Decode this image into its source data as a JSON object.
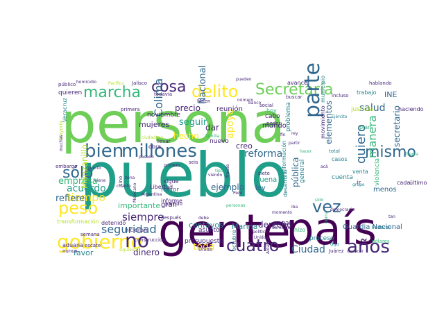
{
  "palette": {
    "dark_purple": "#440154",
    "purple": "#482878",
    "blue": "#3e4a89",
    "teal_blue": "#31688e",
    "teal": "#26828e",
    "green_teal": "#1f9e89",
    "green": "#35b779",
    "light_green": "#6ece58",
    "yellow_green": "#b5de2b",
    "yellow": "#fde725"
  },
  "words": [
    {
      "text": "persona",
      "color": "light_green"
    },
    {
      "text": "pueblo",
      "color": "green_teal"
    },
    {
      "text": "gente",
      "color": "dark_purple"
    },
    {
      "text": "país",
      "color": "dark_purple"
    },
    {
      "text": "millones",
      "color": "teal_blue"
    },
    {
      "text": "gobierno",
      "color": "yellow"
    },
    {
      "text": "Secretaría",
      "color": "light_green"
    },
    {
      "text": "marcha",
      "color": "green"
    },
    {
      "text": "delito",
      "color": "yellow"
    },
    {
      "text": "cosa",
      "color": "purple"
    },
    {
      "text": "mismo",
      "color": "teal_blue"
    },
    {
      "text": "bien",
      "color": "teal_blue"
    },
    {
      "text": "parte",
      "color": "teal_blue"
    },
    {
      "text": "peso",
      "color": "yellow"
    },
    {
      "text": "no",
      "color": "purple"
    },
    {
      "text": "años",
      "color": "purple"
    },
    {
      "text": "cuatro",
      "color": "purple"
    },
    {
      "text": "vez",
      "color": "teal_blue"
    },
    {
      "text": "sólo",
      "color": "teal_blue"
    },
    {
      "text": "salud",
      "color": "teal_blue"
    },
    {
      "text": "Colima",
      "color": "teal_blue"
    },
    {
      "text": "apoyo",
      "color": "yellow"
    },
    {
      "text": "quiero",
      "color": "teal_blue"
    },
    {
      "text": "manera",
      "color": "green"
    },
    {
      "text": "tiempo",
      "color": "yellow"
    },
    {
      "text": "acuerdo",
      "color": "green_teal"
    },
    {
      "text": "seguridad",
      "color": "teal_blue"
    },
    {
      "text": "siempre",
      "color": "purple"
    },
    {
      "text": "Ciudad",
      "color": "teal_blue"
    },
    {
      "text": "reforma",
      "color": "teal_blue"
    },
    {
      "text": "refiere",
      "color": "teal_blue"
    },
    {
      "text": "empresa",
      "color": "green"
    },
    {
      "text": "ejemplo",
      "color": "teal_blue"
    },
    {
      "text": "derecho",
      "color": "purple"
    },
    {
      "text": "Marina",
      "color": "teal"
    },
    {
      "text": "centavos",
      "color": "teal"
    },
    {
      "text": "importante",
      "color": "green"
    },
    {
      "text": "mujeres",
      "color": "purple"
    },
    {
      "text": "precio",
      "color": "purple"
    },
    {
      "text": "seguir",
      "color": "green_teal"
    },
    {
      "text": "hecho",
      "color": "yellow"
    },
    {
      "text": "dar",
      "color": "purple"
    },
    {
      "text": "creo",
      "color": "purple"
    },
    {
      "text": "Manzanillo",
      "color": "yellow_green"
    },
    {
      "text": "Nacional",
      "color": "teal_blue"
    },
    {
      "text": "pública",
      "color": "teal_blue"
    },
    {
      "text": "secretario",
      "color": "teal_blue"
    },
    {
      "text": "elementos",
      "color": "teal_blue"
    },
    {
      "text": "Guardia Nacional",
      "color": "teal_blue"
    },
    {
      "text": "toda",
      "color": "yellow"
    },
    {
      "text": "dinero",
      "color": "purple"
    },
    {
      "text": "favor",
      "color": "teal"
    },
    {
      "text": "reunión",
      "color": "purple"
    },
    {
      "text": "buena",
      "color": "green_teal"
    },
    {
      "text": "ley",
      "color": "teal_blue"
    },
    {
      "text": "menos",
      "color": "teal_blue"
    },
    {
      "text": "mundo",
      "color": "purple"
    },
    {
      "text": "INE",
      "color": "teal_blue"
    },
    {
      "text": "justicia",
      "color": "yellow_green"
    },
    {
      "text": "nuevo",
      "color": "purple"
    },
    {
      "text": "gran",
      "color": "purple"
    },
    {
      "text": "mejor",
      "color": "teal_blue"
    },
    {
      "text": "cuenta",
      "color": "teal"
    },
    {
      "text": "venta",
      "color": "teal"
    },
    {
      "text": "noviembre",
      "color": "purple"
    },
    {
      "text": "asunto",
      "color": "purple"
    },
    {
      "text": "pagar",
      "color": "purple"
    },
    {
      "text": "presupuesto",
      "color": "purple"
    },
    {
      "text": "proceso",
      "color": "teal"
    },
    {
      "text": "dijo",
      "color": "teal"
    },
    {
      "text": "total",
      "color": "teal"
    },
    {
      "text": "casos",
      "color": "teal"
    },
    {
      "text": "cabo",
      "color": "purple"
    },
    {
      "text": "hoy",
      "color": "green"
    },
    {
      "text": "plan",
      "color": "green"
    },
    {
      "text": "cada",
      "color": "purple"
    },
    {
      "text": "último",
      "color": "purple"
    },
    {
      "text": "hablando",
      "color": "purple"
    },
    {
      "text": "trabajo",
      "color": "teal"
    },
    {
      "text": "haciendo",
      "color": "purple"
    },
    {
      "text": "problema",
      "color": "teal"
    },
    {
      "text": "movimiento",
      "color": "purple"
    },
    {
      "text": "Jalisco",
      "color": "purple"
    },
    {
      "text": "público",
      "color": "purple"
    },
    {
      "text": "quieren",
      "color": "purple"
    },
    {
      "text": "todavía",
      "color": "purple"
    },
    {
      "text": "avance",
      "color": "purple"
    },
    {
      "text": "primera",
      "color": "purple"
    },
    {
      "text": "Veracruz",
      "color": "teal"
    },
    {
      "text": "Mayoría",
      "color": "yellow_green"
    },
    {
      "text": "familia",
      "color": "green"
    },
    {
      "text": "llevar",
      "color": "purple"
    },
    {
      "text": "embargo",
      "color": "purple"
    },
    {
      "text": "puerto",
      "color": "purple"
    },
    {
      "text": "viene",
      "color": "purple"
    },
    {
      "text": "zona",
      "color": "purple"
    },
    {
      "text": "cuanto",
      "color": "purple"
    },
    {
      "text": "sino",
      "color": "purple"
    },
    {
      "text": "obra",
      "color": "purple"
    },
    {
      "text": "Libertad",
      "color": "purple"
    },
    {
      "text": "informe",
      "color": "purple"
    },
    {
      "text": "sigue",
      "color": "purple"
    },
    {
      "text": "siete",
      "color": "purple"
    },
    {
      "text": "hicieron",
      "color": "purple"
    },
    {
      "text": "detenido",
      "color": "purple"
    },
    {
      "text": "transformación",
      "color": "yellow_green"
    },
    {
      "text": "semana",
      "color": "purple"
    },
    {
      "text": "aduana",
      "color": "purple"
    },
    {
      "text": "nunca",
      "color": "purple"
    },
    {
      "text": "escate",
      "color": "purple"
    },
    {
      "text": "construcción",
      "color": "purple"
    },
    {
      "text": "partido",
      "color": "purple"
    },
    {
      "text": "después",
      "color": "purple"
    },
    {
      "text": "Unido",
      "color": "purple"
    },
    {
      "text": "siguiente",
      "color": "yellow_green"
    },
    {
      "text": "Pacífico",
      "color": "yellow_green"
    },
    {
      "text": "homicidio",
      "color": "purple"
    },
    {
      "text": "Miren",
      "color": "purple"
    },
    {
      "text": "banco",
      "color": "purple"
    },
    {
      "text": "social",
      "color": "purple"
    },
    {
      "text": "poder",
      "color": "purple"
    },
    {
      "text": "Ejército",
      "color": "teal"
    },
    {
      "text": "municipio",
      "color": "teal"
    },
    {
      "text": "buscar",
      "color": "purple"
    },
    {
      "text": "incluso",
      "color": "purple"
    },
    {
      "text": "pueden",
      "color": "purple"
    },
    {
      "text": "número",
      "color": "purple"
    },
    {
      "text": "general",
      "color": "teal"
    },
    {
      "text": "desarrollo",
      "color": "teal"
    },
    {
      "text": "información",
      "color": "teal"
    },
    {
      "text": "violencia",
      "color": "green"
    },
    {
      "text": "fuerza",
      "color": "green"
    },
    {
      "text": "grupo",
      "color": "teal"
    },
    {
      "text": "ir",
      "color": "purple"
    },
    {
      "text": "octubre",
      "color": "teal"
    },
    {
      "text": "hizo",
      "color": "green"
    },
    {
      "text": "democracia",
      "color": "purple"
    },
    {
      "text": "Juárez",
      "color": "purple"
    },
    {
      "text": "dólares",
      "color": "green"
    },
    {
      "text": "Federal",
      "color": "teal"
    },
    {
      "text": "tan",
      "color": "purple"
    },
    {
      "text": "momento",
      "color": "purple"
    },
    {
      "text": "Aldama",
      "color": "purple"
    },
    {
      "text": "domingo",
      "color": "purple"
    },
    {
      "text": "rey",
      "color": "purple"
    },
    {
      "text": "tipo",
      "color": "green"
    },
    {
      "text": "viendo",
      "color": "purple"
    },
    {
      "text": "Perú",
      "color": "purple"
    },
    {
      "text": "iba",
      "color": "purple"
    },
    {
      "text": "sido",
      "color": "green"
    },
    {
      "text": "seis",
      "color": "purple"
    },
    {
      "text": "primero",
      "color": "purple"
    },
    {
      "text": "pasado",
      "color": "purple"
    },
    {
      "text": "debe",
      "color": "purple"
    },
    {
      "text": "tierra",
      "color": "green"
    },
    {
      "text": "conocer",
      "color": "purple"
    },
    {
      "text": "ciudadano",
      "color": "yellow_green"
    },
    {
      "text": "Argentina",
      "color": "purple"
    },
    {
      "text": "Mexicano",
      "color": "purple"
    },
    {
      "text": "Unidos",
      "color": "purple"
    },
    {
      "text": "político",
      "color": "purple"
    },
    {
      "text": "muchas",
      "color": "purple"
    },
    {
      "text": "partir",
      "color": "purple"
    },
    {
      "text": "fraude",
      "color": "purple"
    },
    {
      "text": "hacer",
      "color": "green"
    },
    {
      "text": "personas",
      "color": "green"
    },
    {
      "text": "fin",
      "color": "purple"
    },
    {
      "text": "acá",
      "color": "purple"
    }
  ]
}
